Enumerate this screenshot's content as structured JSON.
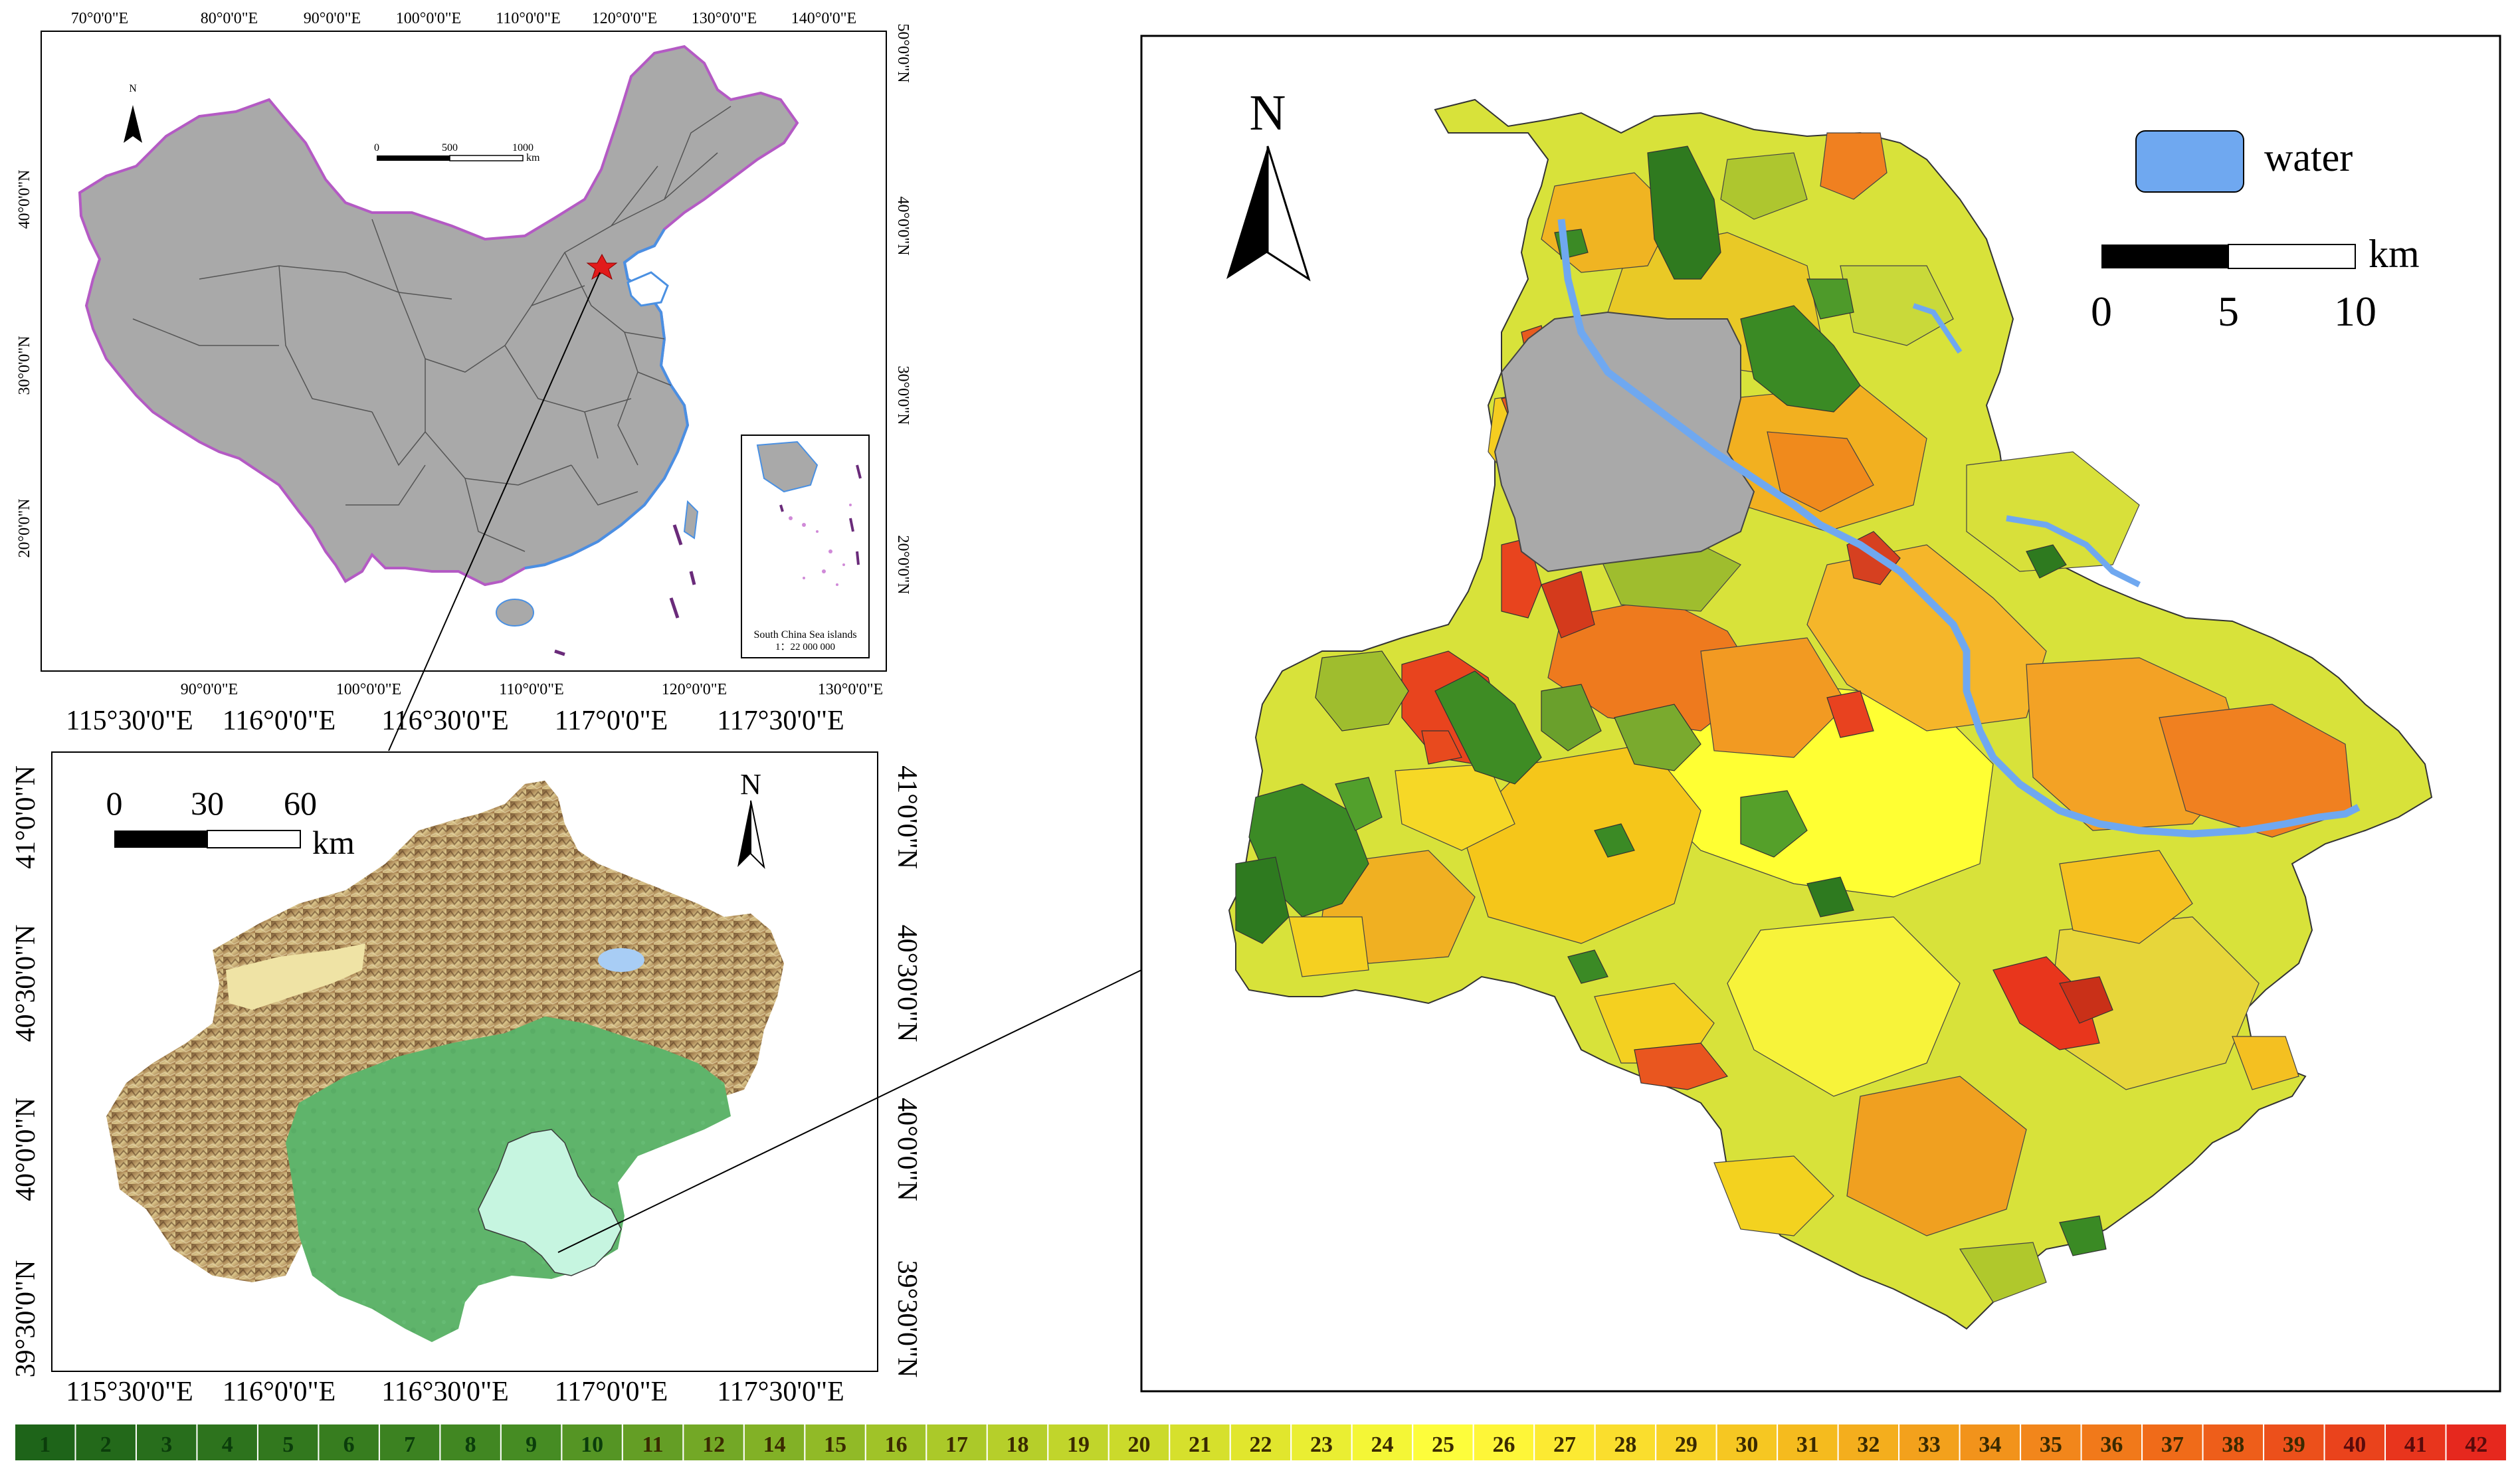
{
  "china_panel": {
    "top_lon_labels": [
      "70°0'0\"E",
      "80°0'0\"E",
      "90°0'0\"E",
      "100°0'0\"E",
      "110°0'0\"E",
      "120°0'0\"E",
      "130°0'0\"E",
      "140°0'0\"E"
    ],
    "bottom_lon_labels": [
      "90°0'0\"E",
      "100°0'0\"E",
      "110°0'0\"E",
      "120°0'0\"E",
      "130°0'0\"E"
    ],
    "left_lat_labels": [
      "40°0'0\"N",
      "30°0'0\"N",
      "20°0'0\"N"
    ],
    "right_lat_labels": [
      "50°0'0\"N",
      "40°0'0\"N",
      "30°0'0\"N",
      "20°0'0\"N"
    ],
    "north_label": "N",
    "scale_labels": [
      "0",
      "500",
      "1000",
      "km"
    ],
    "inset_title": "South China Sea islands",
    "inset_scale": "1：22 000 000"
  },
  "beijing_panel": {
    "top_lon_labels": [
      "115°30'0\"E",
      "116°0'0\"E",
      "116°30'0\"E",
      "117°0'0\"E",
      "117°30'0\"E"
    ],
    "bottom_lon_labels": [
      "115°30'0\"E",
      "116°0'0\"E",
      "116°30'0\"E",
      "117°0'0\"E",
      "117°30'0\"E"
    ],
    "left_lat_labels": [
      "41°0'0\"N",
      "40°30'0\"N",
      "40°0'0\"N",
      "39°30'0\"N"
    ],
    "right_lat_labels": [
      "41°0'0\"N",
      "40°30'0\"N",
      "40°0'0\"N",
      "39°30'0\"N"
    ],
    "north_label": "N",
    "scale_labels": [
      "0",
      "30",
      "60",
      "km"
    ]
  },
  "detail_panel": {
    "north_label": "N",
    "water_label": "water",
    "water_color": "#6FA8F0",
    "scale_labels": [
      "0",
      "5",
      "10"
    ],
    "scale_unit": "km"
  },
  "colorbar": {
    "labels": [
      "1",
      "2",
      "3",
      "4",
      "5",
      "6",
      "7",
      "8",
      "9",
      "10",
      "11",
      "12",
      "14",
      "15",
      "16",
      "17",
      "18",
      "19",
      "20",
      "21",
      "22",
      "23",
      "24",
      "25",
      "26",
      "27",
      "28",
      "29",
      "30",
      "31",
      "32",
      "33",
      "34",
      "35",
      "36",
      "37",
      "38",
      "39",
      "40",
      "41",
      "42"
    ]
  }
}
